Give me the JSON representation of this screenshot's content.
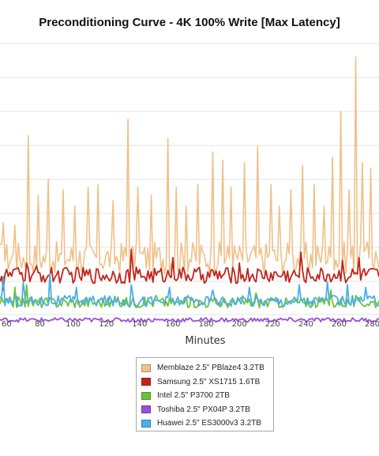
{
  "chart_data": {
    "type": "line",
    "title": "Preconditioning Curve - 4K 100% Write [Max Latency]",
    "xlabel": "Minutes",
    "ylabel": "",
    "x_tick_labels": [
      "60",
      "80",
      "100",
      "120",
      "140",
      "160",
      "180",
      "200",
      "220",
      "240",
      "260",
      "280"
    ],
    "xlim": [
      56,
      284
    ],
    "grid": true,
    "legend_position": "bottom",
    "series": [
      {
        "name": "Memblaze 2.5\" PBlaze4 3.2TB",
        "color": "#f0c088",
        "baseline": 0.21,
        "noise": 0.06,
        "spikes": [
          [
            58,
            0.34
          ],
          [
            65,
            0.33
          ],
          [
            73,
            0.66
          ],
          [
            79,
            0.44
          ],
          [
            85,
            0.5
          ],
          [
            94,
            0.46
          ],
          [
            101,
            0.4
          ],
          [
            109,
            0.47
          ],
          [
            115,
            0.48
          ],
          [
            124,
            0.42
          ],
          [
            133,
            0.72
          ],
          [
            139,
            0.47
          ],
          [
            147,
            0.44
          ],
          [
            157,
            0.65
          ],
          [
            162,
            0.47
          ],
          [
            168,
            0.4
          ],
          [
            175,
            0.48
          ],
          [
            184,
            0.6
          ],
          [
            190,
            0.57
          ],
          [
            195,
            0.47
          ],
          [
            203,
            0.56
          ],
          [
            211,
            0.62
          ],
          [
            219,
            0.48
          ],
          [
            224,
            0.4
          ],
          [
            231,
            0.46
          ],
          [
            238,
            0.55
          ],
          [
            245,
            0.48
          ],
          [
            251,
            0.4
          ],
          [
            256,
            0.58
          ],
          [
            261,
            0.75
          ],
          [
            266,
            0.46
          ],
          [
            270,
            0.95
          ],
          [
            274,
            0.56
          ],
          [
            279,
            0.54
          ]
        ]
      },
      {
        "name": "Samsung 2.5\" XS1715 1.6TB",
        "color": "#c0241c",
        "baseline": 0.145,
        "noise": 0.03,
        "spikes": [
          [
            58,
            0.09
          ],
          [
            66,
            0.17
          ],
          [
            72,
            0.19
          ],
          [
            78,
            0.18
          ],
          [
            135,
            0.24
          ],
          [
            160,
            0.21
          ],
          [
            200,
            0.19
          ],
          [
            237,
            0.23
          ],
          [
            262,
            0.2
          ],
          [
            272,
            0.21
          ]
        ]
      },
      {
        "name": "Intel 2.5\" P3700 2TB",
        "color": "#6cc23a",
        "baseline": 0.045,
        "noise": 0.02,
        "spikes": [
          [
            65,
            0.1
          ],
          [
            72,
            0.11
          ],
          [
            150,
            0.07
          ],
          [
            210,
            0.08
          ],
          [
            255,
            0.09
          ],
          [
            270,
            0.07
          ]
        ]
      },
      {
        "name": "Toshiba 2.5\" PX04P 3.2TB",
        "color": "#9b4ddb",
        "baseline": -0.02,
        "noise": 0.008,
        "spikes": []
      },
      {
        "name": "Huawei 2.5\" ES3000v3 3.2TB",
        "color": "#4aaee8",
        "baseline": 0.05,
        "noise": 0.02,
        "spikes": [
          [
            58,
            0.14
          ],
          [
            70,
            0.12
          ],
          [
            86,
            0.15
          ],
          [
            102,
            0.1
          ],
          [
            135,
            0.11
          ],
          [
            158,
            0.1
          ],
          [
            184,
            0.09
          ],
          [
            206,
            0.1
          ],
          [
            236,
            0.11
          ],
          [
            253,
            0.12
          ],
          [
            265,
            0.11
          ],
          [
            276,
            0.1
          ]
        ]
      }
    ]
  },
  "legend": {
    "items": [
      {
        "label": "Memblaze 2.5\" PBlaze4 3.2TB",
        "color": "#f0c088"
      },
      {
        "label": "Samsung 2.5\" XS1715 1.6TB",
        "color": "#c0241c"
      },
      {
        "label": "Intel 2.5\" P3700 2TB",
        "color": "#6cc23a"
      },
      {
        "label": "Toshiba 2.5\" PX04P 3.2TB",
        "color": "#9b4ddb"
      },
      {
        "label": "Huawei 2.5\" ES3000v3 3.2TB",
        "color": "#4aaee8"
      }
    ]
  }
}
